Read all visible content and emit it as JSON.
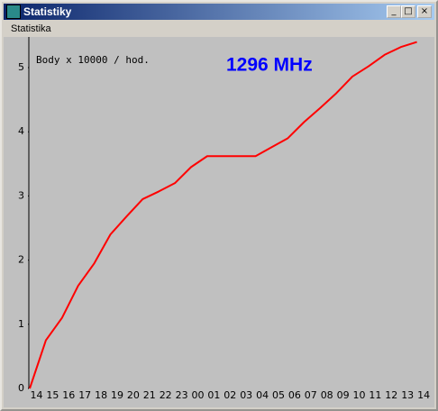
{
  "window": {
    "title": "Statistiky"
  },
  "menu": {
    "items": [
      "Statistika"
    ]
  },
  "chart_data": {
    "type": "line",
    "annotations": [
      "Body x 10000 / hod.",
      "1296 MHz"
    ],
    "categories": [
      "14",
      "15",
      "16",
      "17",
      "18",
      "19",
      "20",
      "21",
      "22",
      "23",
      "00",
      "01",
      "02",
      "03",
      "04",
      "05",
      "06",
      "07",
      "08",
      "09",
      "10",
      "11",
      "12",
      "13",
      "14"
    ],
    "series": [
      {
        "color": "#ff0000",
        "values": [
          0,
          0.75,
          1.1,
          1.6,
          1.95,
          2.4,
          2.68,
          2.95,
          3.07,
          3.2,
          3.45,
          3.62,
          3.62,
          3.62,
          3.62,
          3.76,
          3.9,
          4.15,
          4.37,
          4.6,
          4.86,
          5.02,
          5.2,
          5.32,
          5.4
        ]
      }
    ],
    "ylim": [
      0,
      5.5
    ],
    "yticks": [
      0,
      1,
      2,
      3,
      4,
      5
    ],
    "grid": false
  }
}
